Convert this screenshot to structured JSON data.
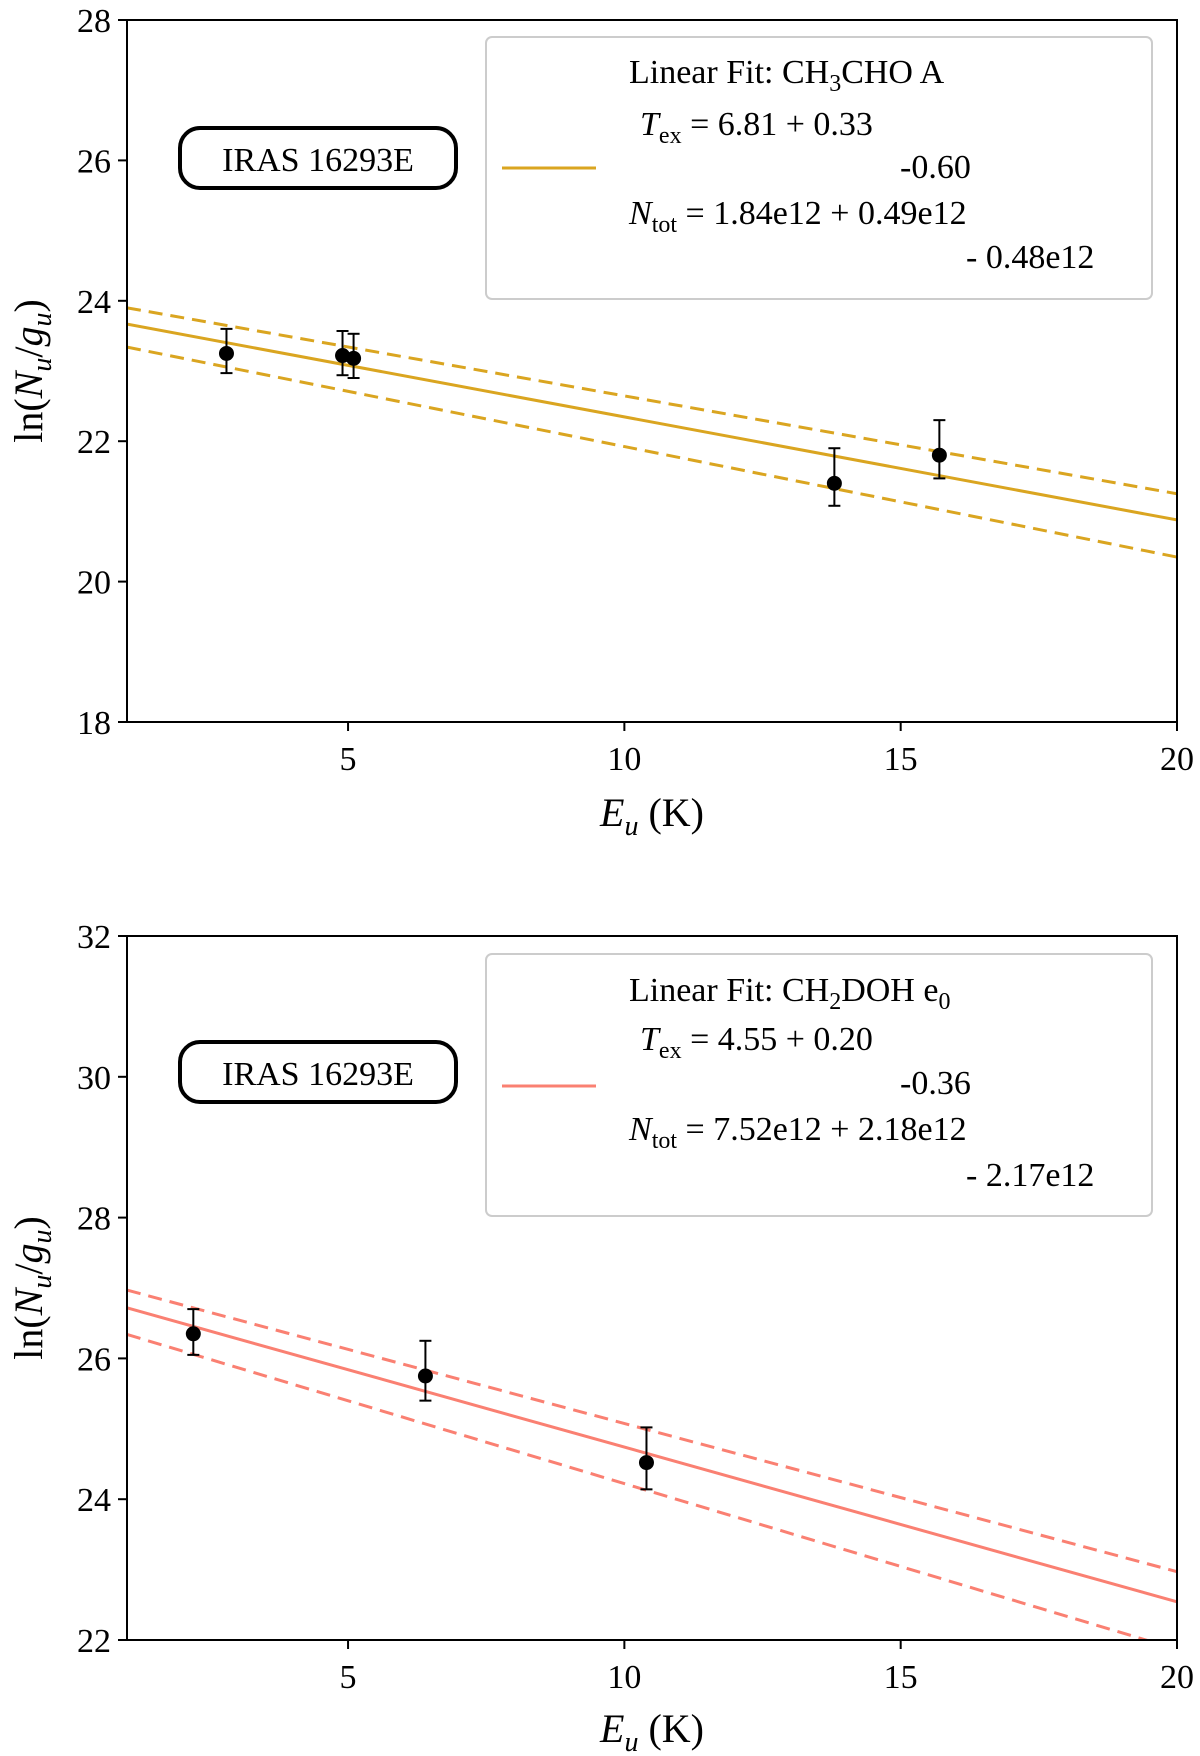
{
  "chart_data": [
    {
      "type": "scatter",
      "xlabel": {
        "var": "E",
        "sub": "u",
        "unit": "(K)"
      },
      "ylabel": {
        "prefix": "ln(",
        "num": "N",
        "num_sub": "u",
        "den": "g",
        "den_sub": "u",
        "suffix": ")"
      },
      "xlim": [
        1,
        20
      ],
      "ylim": [
        18,
        28
      ],
      "x_ticks": [
        5,
        10,
        15,
        20
      ],
      "y_ticks": [
        18,
        20,
        22,
        24,
        26,
        28
      ],
      "source_label": "IRAS 16293E",
      "color": "#daa520",
      "points": [
        {
          "x": 2.8,
          "y": 23.25,
          "err_low": 0.28,
          "err_high": 0.35
        },
        {
          "x": 4.9,
          "y": 23.22,
          "err_low": 0.28,
          "err_high": 0.35
        },
        {
          "x": 5.1,
          "y": 23.18,
          "err_low": 0.28,
          "err_high": 0.35
        },
        {
          "x": 13.8,
          "y": 21.4,
          "err_low": 0.32,
          "err_high": 0.5
        },
        {
          "x": 15.7,
          "y": 21.8,
          "err_low": 0.33,
          "err_high": 0.5
        }
      ],
      "fit": {
        "slope": -0.146825,
        "intercept": 23.8147
      },
      "fit_upper": {
        "slope": -0.1394,
        "intercept": 24.0394
      },
      "fit_lower": {
        "slope": -0.1574,
        "intercept": 23.4974
      },
      "legend": {
        "fit_label": "Linear Fit: ",
        "mol_a": "CH",
        "mol_sub": "3",
        "mol_b": "CHO A",
        "tex_sym": "T",
        "tex_sub": "ex",
        "tex_text": " = 6.81 + 0.33",
        "tex_minus": "-0.60",
        "ntot_sym": "N",
        "ntot_sub": "tot",
        "ntot_text": " = 1.84e12  + 0.49e12",
        "ntot_minus": "- 0.48e12"
      }
    },
    {
      "type": "scatter",
      "xlabel": {
        "var": "E",
        "sub": "u",
        "unit": "(K)"
      },
      "ylabel": {
        "prefix": "ln(",
        "num": "N",
        "num_sub": "u",
        "den": "g",
        "den_sub": "u",
        "suffix": ")"
      },
      "xlim": [
        1,
        20
      ],
      "ylim": [
        22,
        32
      ],
      "x_ticks": [
        5,
        10,
        15,
        20
      ],
      "y_ticks": [
        22,
        24,
        26,
        28,
        30,
        32
      ],
      "source_label": "IRAS 16293E",
      "color": "#fa8072",
      "points": [
        {
          "x": 2.2,
          "y": 26.35,
          "err_low": 0.3,
          "err_high": 0.35
        },
        {
          "x": 6.4,
          "y": 25.75,
          "err_low": 0.35,
          "err_high": 0.5
        },
        {
          "x": 10.4,
          "y": 24.52,
          "err_low": 0.38,
          "err_high": 0.5
        }
      ],
      "fit": {
        "slope": -0.2198,
        "intercept": 26.938
      },
      "fit_upper": {
        "slope": -0.2105,
        "intercept": 27.1805
      },
      "fit_lower": {
        "slope": -0.2354,
        "intercept": 26.5754
      },
      "legend": {
        "fit_label": "Linear Fit: ",
        "mol_a": "CH",
        "mol_sub": "2",
        "mol_b": "DOH e",
        "mol_sub2": "0",
        "tex_sym": "T",
        "tex_sub": "ex",
        "tex_text": " = 4.55 + 0.20",
        "tex_minus": "-0.36",
        "ntot_sym": "N",
        "ntot_sub": "tot",
        "ntot_text": " = 7.52e12  + 2.18e12",
        "ntot_minus": "- 2.17e12"
      }
    }
  ]
}
